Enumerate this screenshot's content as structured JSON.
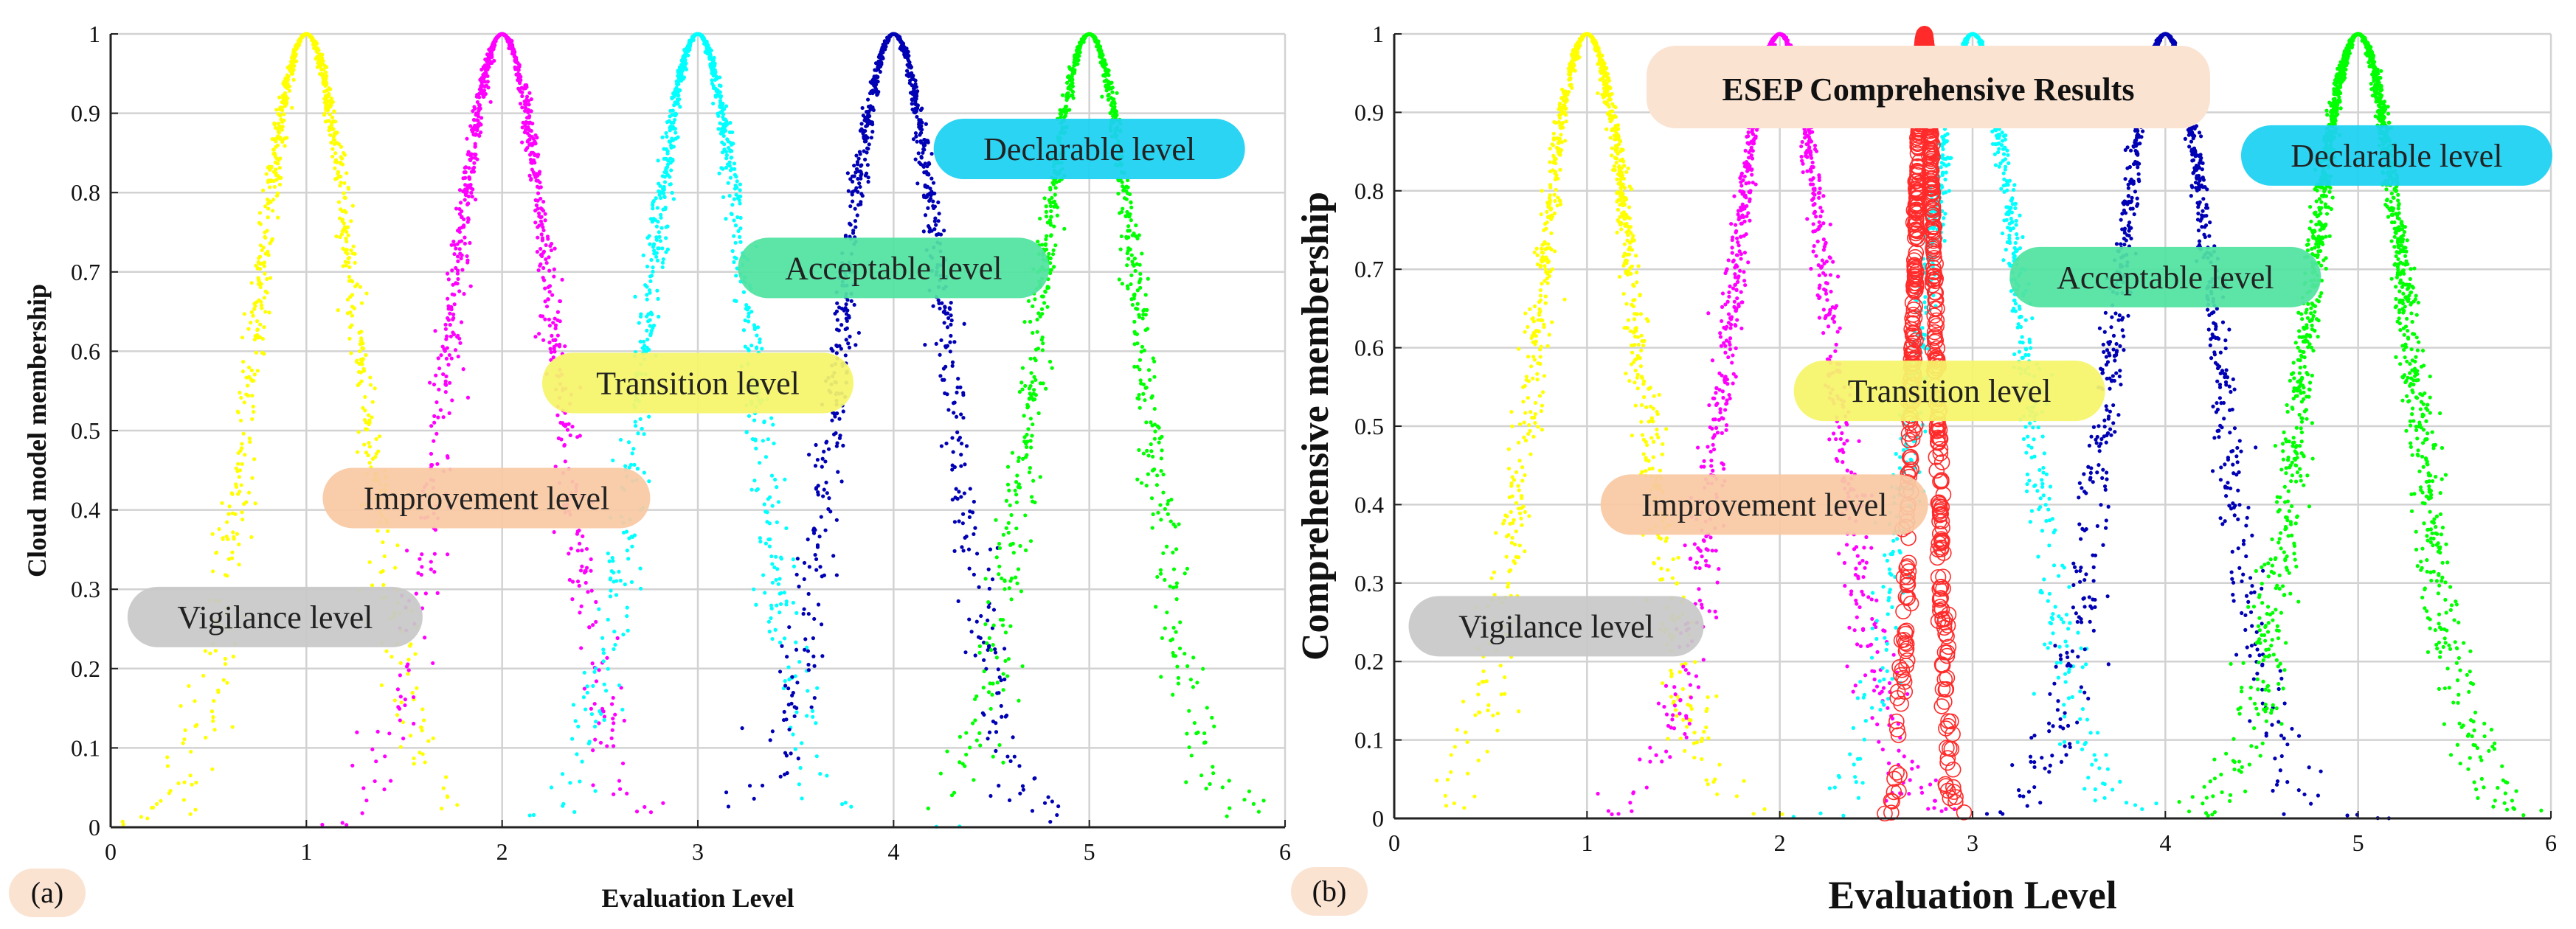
{
  "chart_data": [
    {
      "type": "scatter",
      "panel_tag": "(a)",
      "title": "",
      "xlabel": "Evaluation Level",
      "ylabel": "Cloud model membership",
      "xlim": [
        0,
        6
      ],
      "ylim": [
        0,
        1
      ],
      "xticks": [
        "0",
        "1",
        "2",
        "3",
        "4",
        "5",
        "6"
      ],
      "yticks": [
        "0",
        "0.1",
        "0.2",
        "0.3",
        "0.4",
        "0.5",
        "0.6",
        "0.7",
        "0.8",
        "0.9",
        "1"
      ],
      "grid": true,
      "series": [
        {
          "name": "Vigilance level",
          "color": "#ffff00",
          "ex": 1,
          "en": 0.27,
          "n_points": 900
        },
        {
          "name": "Improvement level",
          "color": "#ff00ff",
          "ex": 2,
          "en": 0.27,
          "n_points": 900
        },
        {
          "name": "Transition level",
          "color": "#00ffff",
          "ex": 3,
          "en": 0.27,
          "n_points": 900
        },
        {
          "name": "Acceptable level",
          "color": "#0000b4",
          "ex": 4,
          "en": 0.27,
          "n_points": 900
        },
        {
          "name": "Declarable level",
          "color": "#00ff00",
          "ex": 5,
          "en": 0.27,
          "n_points": 900
        }
      ],
      "annotations": [
        {
          "text": "Vigilance level",
          "x": 0.84,
          "y": 0.265,
          "bg": "#c8c8c8"
        },
        {
          "text": "Improvement level",
          "x": 1.92,
          "y": 0.415,
          "bg": "#f9c9a4"
        },
        {
          "text": "Transition level",
          "x": 3.0,
          "y": 0.56,
          "bg": "#f5f569"
        },
        {
          "text": "Acceptable level",
          "x": 4.0,
          "y": 0.705,
          "bg": "#51e3a1"
        },
        {
          "text": "Declarable level",
          "x": 5.0,
          "y": 0.855,
          "bg": "#1bd1f2"
        }
      ]
    },
    {
      "type": "scatter",
      "panel_tag": "(b)",
      "title": "ESEP Comprehensive Results",
      "xlabel": "Evaluation Level",
      "ylabel": "Comprehensive membership",
      "xlim": [
        0,
        6
      ],
      "ylim": [
        0,
        1
      ],
      "xticks": [
        "0",
        "1",
        "2",
        "3",
        "4",
        "5",
        "6"
      ],
      "yticks": [
        "0",
        "0.1",
        "0.2",
        "0.3",
        "0.4",
        "0.5",
        "0.6",
        "0.7",
        "0.8",
        "0.9",
        "1"
      ],
      "grid": true,
      "series": [
        {
          "name": "Vigilance level",
          "color": "#ffff00",
          "ex": 1,
          "en": 0.27,
          "n_points": 1100
        },
        {
          "name": "Improvement level",
          "color": "#ff00ff",
          "ex": 2,
          "en": 0.27,
          "n_points": 1100
        },
        {
          "name": "Transition level",
          "color": "#00ffff",
          "ex": 3,
          "en": 0.27,
          "n_points": 1100
        },
        {
          "name": "Acceptable level",
          "color": "#0000b4",
          "ex": 4,
          "en": 0.27,
          "n_points": 1100
        },
        {
          "name": "Declarable level",
          "color": "#00ff00",
          "ex": 5,
          "en": 0.27,
          "n_points": 1800
        },
        {
          "name": "ESEP Comprehensive Results",
          "color": "#ff2a2a",
          "ex": 2.75,
          "en": 0.06,
          "n_points": 700,
          "marker": "open-circle"
        }
      ],
      "annotations": [
        {
          "text": "Vigilance level",
          "x": 0.84,
          "y": 0.245,
          "bg": "#c8c8c8"
        },
        {
          "text": "Improvement level",
          "x": 1.92,
          "y": 0.4,
          "bg": "#f9c9a4"
        },
        {
          "text": "Transition level",
          "x": 2.88,
          "y": 0.545,
          "bg": "#f5f569"
        },
        {
          "text": "Acceptable level",
          "x": 4.0,
          "y": 0.69,
          "bg": "#51e3a1"
        },
        {
          "text": "Declarable level",
          "x": 5.2,
          "y": 0.845,
          "bg": "#1bd1f2"
        }
      ]
    }
  ]
}
